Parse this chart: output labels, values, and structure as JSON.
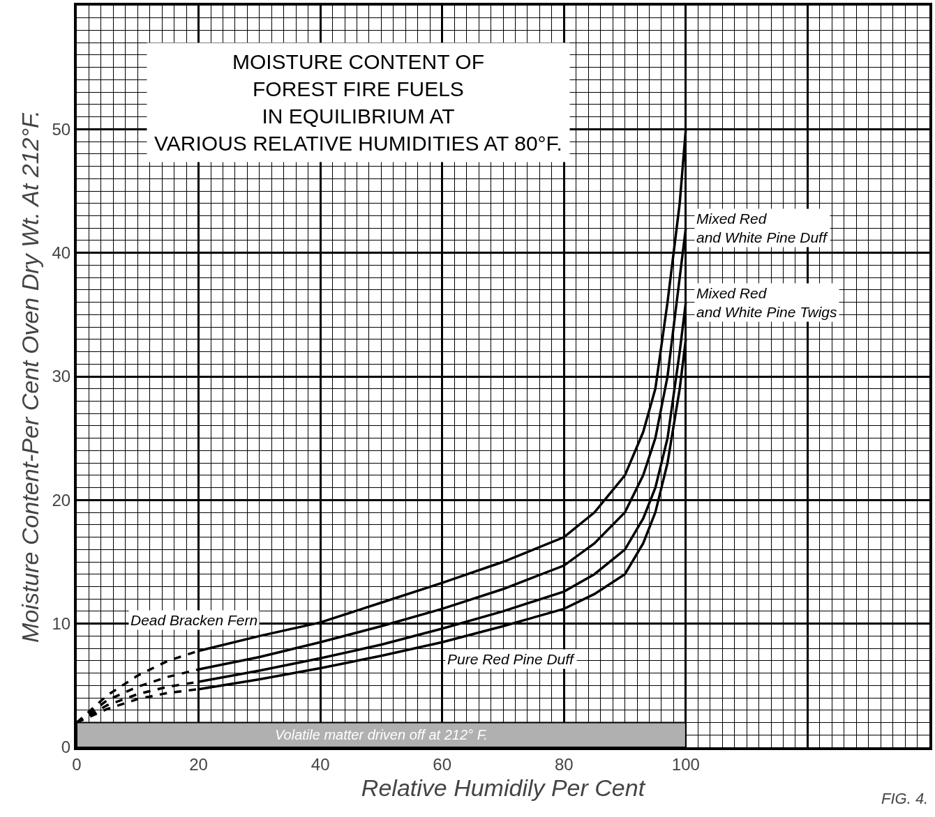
{
  "chart_data": {
    "type": "line",
    "title": "MOISTURE CONTENT OF\nFOREST FIRE FUELS\nIN EQUILIBRIUM AT\nVARIOUS RELATIVE HUMIDITIES AT 80°F.",
    "xlabel": "Relative Humidily Per Cent",
    "ylabel": "Moisture Content-Per Cent Oven Dry Wt. At 212°F.",
    "series": [
      {
        "color": "#000000",
        "line_style": "dashed",
        "x": [
          0,
          5,
          10,
          15,
          20
        ],
        "values": [
          2,
          4.2,
          5.8,
          7,
          7.8
        ]
      },
      {
        "color": "#000000",
        "line_style": "dashed",
        "x": [
          0,
          5,
          10,
          15,
          20
        ],
        "values": [
          2,
          3.8,
          4.9,
          5.7,
          6.3
        ]
      },
      {
        "color": "#000000",
        "line_style": "dashed",
        "x": [
          0,
          5,
          10,
          15,
          20
        ],
        "values": [
          2,
          3.4,
          4.3,
          4.9,
          5.3
        ]
      },
      {
        "color": "#000000",
        "line_style": "dashed",
        "x": [
          0,
          5,
          10,
          15,
          20
        ],
        "values": [
          2,
          3.1,
          3.9,
          4.4,
          4.7
        ]
      },
      {
        "name": "Dead Bracken Fern",
        "color": "#000000",
        "line_style": "solid",
        "x": [
          20,
          30,
          40,
          50,
          60,
          70,
          80,
          85,
          90,
          93,
          95,
          97,
          99,
          100
        ],
        "values": [
          7.8,
          9,
          10.1,
          11.7,
          13.3,
          15,
          17,
          19,
          22,
          25.5,
          29,
          36,
          44,
          50
        ]
      },
      {
        "name": "Mixed Red and White Pine Duff",
        "color": "#000000",
        "line_style": "solid",
        "x": [
          20,
          30,
          40,
          50,
          60,
          70,
          80,
          85,
          90,
          93,
          95,
          97,
          99,
          100
        ],
        "values": [
          6.3,
          7.3,
          8.5,
          9.8,
          11.2,
          12.8,
          14.7,
          16.5,
          19,
          22,
          25,
          30,
          38,
          42
        ]
      },
      {
        "name": "Mixed Red and White Pine Twigs",
        "color": "#000000",
        "line_style": "solid",
        "x": [
          20,
          30,
          40,
          50,
          60,
          70,
          80,
          85,
          90,
          93,
          95,
          97,
          99,
          100
        ],
        "values": [
          5.3,
          6.2,
          7.2,
          8.3,
          9.6,
          11,
          12.6,
          14,
          16,
          18.5,
          21,
          25,
          32,
          36
        ]
      },
      {
        "name": "Pure Red Pine Duff",
        "color": "#000000",
        "line_style": "solid",
        "x": [
          20,
          30,
          40,
          50,
          60,
          70,
          80,
          85,
          90,
          93,
          95,
          97,
          99,
          100
        ],
        "values": [
          4.7,
          5.5,
          6.4,
          7.4,
          8.5,
          9.8,
          11.2,
          12.4,
          14,
          16.5,
          19,
          23,
          29,
          33
        ]
      }
    ],
    "bands": [
      {
        "axis": "y",
        "from": 0,
        "to": 2,
        "label": "Volatile matter driven off at 212° F.",
        "color": "#b0b0b0"
      }
    ],
    "annotations": [
      "FIG. 4."
    ],
    "xlim": [
      0,
      140
    ],
    "xticks": [
      0,
      20,
      40,
      60,
      80,
      100,
      {
        "value": 120,
        "label": null
      }
    ],
    "ylim": [
      0,
      60
    ],
    "yticks": [
      0,
      10,
      20,
      30,
      40,
      50,
      {
        "value": 60,
        "label": null
      }
    ],
    "grid": true,
    "legend": false,
    "marker": "none"
  }
}
